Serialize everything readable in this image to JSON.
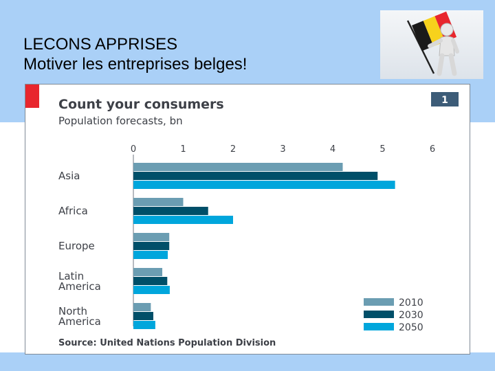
{
  "slide": {
    "title_line1": "LECONS APPRISES",
    "title_line2": "Motiver les entreprises belges!",
    "flag_icon": "belgium-flag-figure-icon",
    "flag_colors": {
      "black": "#1a1a1a",
      "yellow": "#f7d21c",
      "red": "#e8262d"
    }
  },
  "chart_data": {
    "type": "bar",
    "orientation": "horizontal",
    "title": "Count your consumers",
    "subtitle": "Population forecasts, bn",
    "badge": "1",
    "source": "Source: United Nations Population Division",
    "categories": [
      {
        "lines": [
          "Asia"
        ]
      },
      {
        "lines": [
          "Africa"
        ]
      },
      {
        "lines": [
          "Europe"
        ]
      },
      {
        "lines": [
          "Latin",
          "America"
        ]
      },
      {
        "lines": [
          "North",
          "America"
        ]
      }
    ],
    "series": [
      {
        "name": "2010",
        "color": "#6b9db2",
        "values": [
          4.2,
          1.0,
          0.72,
          0.58,
          0.35
        ]
      },
      {
        "name": "2030",
        "color": "#004f69",
        "values": [
          4.9,
          1.5,
          0.72,
          0.68,
          0.4
        ]
      },
      {
        "name": "2050",
        "color": "#00a6dc",
        "values": [
          5.25,
          2.0,
          0.69,
          0.73,
          0.44
        ]
      }
    ],
    "xlim": [
      0,
      6
    ],
    "xticks": [
      "0",
      "1",
      "2",
      "3",
      "4",
      "5",
      "6"
    ],
    "axis_position": "top",
    "grid": false,
    "legend_position": "bottom-right",
    "colors": {
      "accent": "#e8262d",
      "text": "#3d4047",
      "badge": "#3d5c78"
    }
  }
}
